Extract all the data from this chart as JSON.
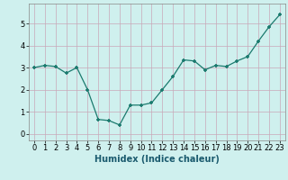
{
  "x": [
    0,
    1,
    2,
    3,
    4,
    5,
    6,
    7,
    8,
    9,
    10,
    11,
    12,
    13,
    14,
    15,
    16,
    17,
    18,
    19,
    20,
    21,
    22,
    23
  ],
  "y": [
    3.0,
    3.1,
    3.05,
    2.75,
    3.0,
    2.0,
    0.65,
    0.6,
    0.4,
    1.3,
    1.3,
    1.4,
    2.0,
    2.6,
    3.35,
    3.3,
    2.9,
    3.1,
    3.05,
    3.3,
    3.5,
    4.2,
    4.85,
    5.4
  ],
  "xlabel": "Humidex (Indice chaleur)",
  "line_color": "#1a7a6e",
  "marker_color": "#1a7a6e",
  "bg_color": "#cff0ee",
  "grid_color": "#c8a8b8",
  "xlim": [
    -0.5,
    23.5
  ],
  "ylim": [
    -0.3,
    5.9
  ],
  "yticks": [
    0,
    1,
    2,
    3,
    4,
    5
  ],
  "xticks": [
    0,
    1,
    2,
    3,
    4,
    5,
    6,
    7,
    8,
    9,
    10,
    11,
    12,
    13,
    14,
    15,
    16,
    17,
    18,
    19,
    20,
    21,
    22,
    23
  ],
  "xlabel_fontsize": 7,
  "tick_fontsize": 6
}
